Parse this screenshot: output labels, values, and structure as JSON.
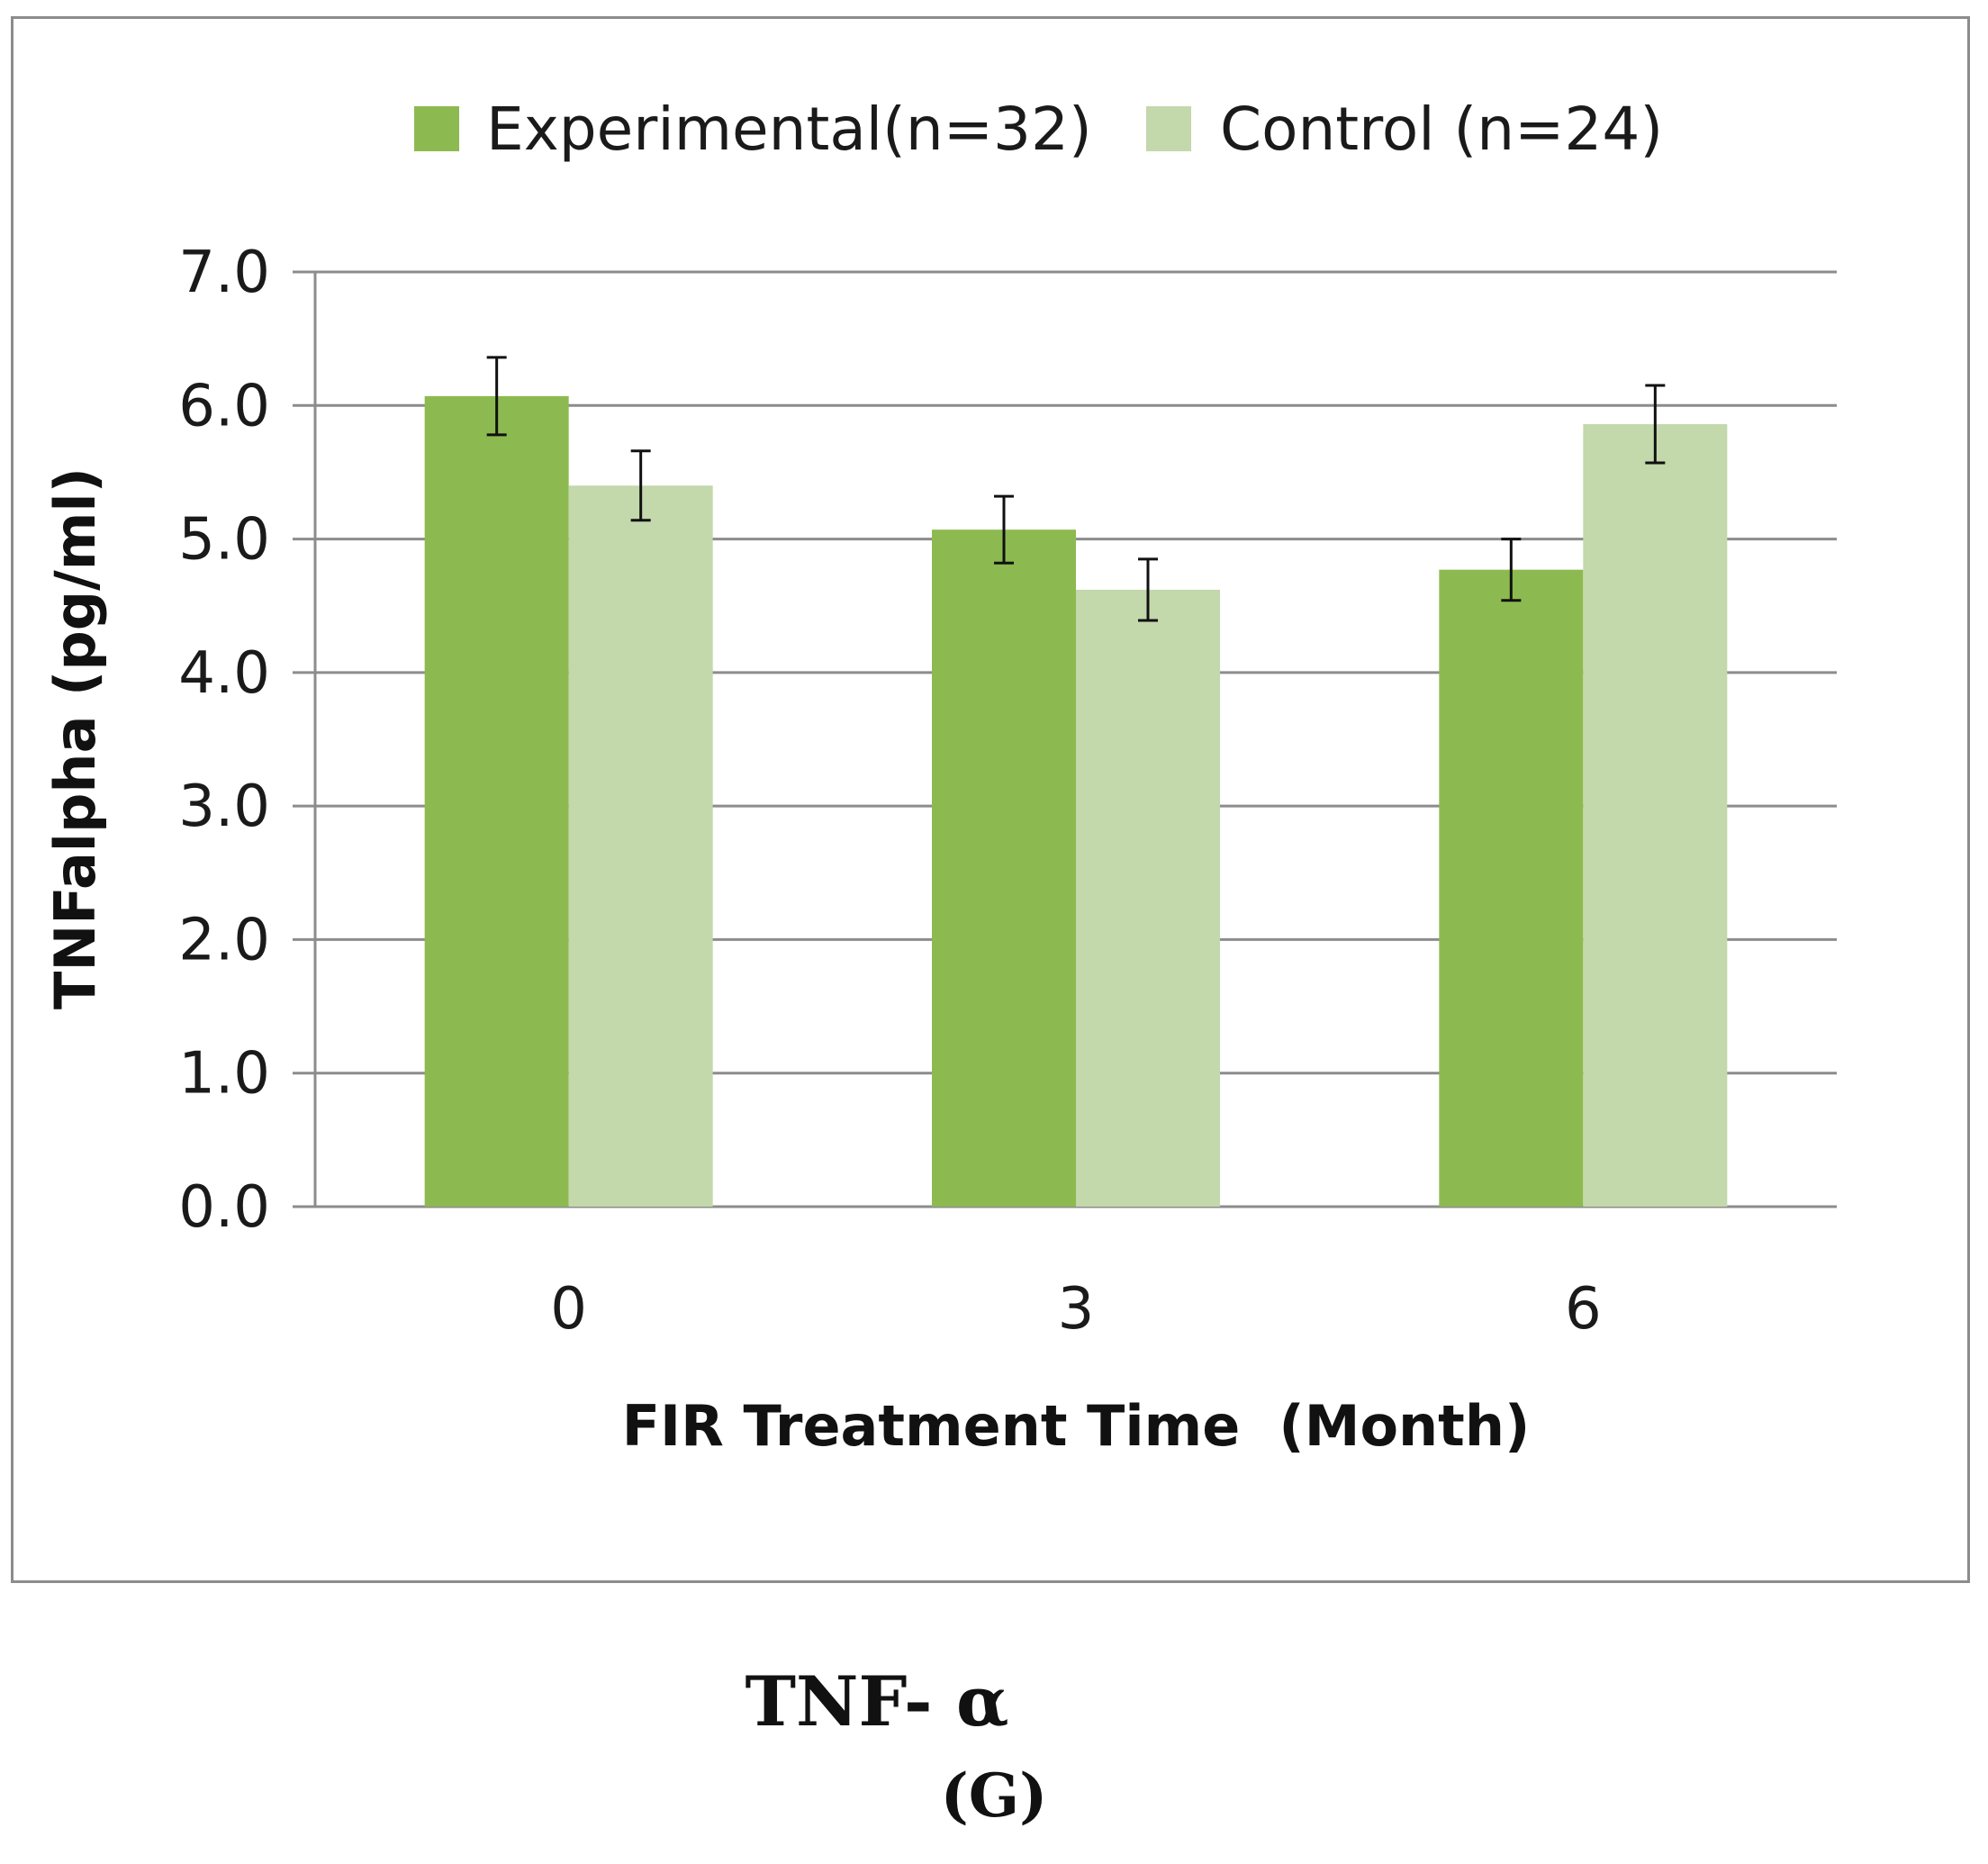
{
  "colors": {
    "experimental": "#8dba50",
    "control": "#c3d8ab",
    "grid": "#8c8c8c",
    "axis": "#8c8c8c",
    "error": "#111111"
  },
  "chart_data": {
    "type": "bar",
    "xlabel": "FIR Treatment Time  (Month)",
    "ylabel": "TNFalpha (pg/ml)",
    "categories": [
      "0",
      "3",
      "6"
    ],
    "ylim": [
      0,
      7
    ],
    "yticks": [
      "0.0",
      "1.0",
      "2.0",
      "3.0",
      "4.0",
      "5.0",
      "6.0",
      "7.0"
    ],
    "grid": true,
    "legend_position": "top",
    "series": [
      {
        "name": "Experimental(n=32)",
        "values": [
          6.07,
          5.07,
          4.77
        ],
        "errors": [
          0.29,
          0.25,
          0.23
        ]
      },
      {
        "name": "Control (n=24)",
        "values": [
          5.4,
          4.62,
          5.86
        ],
        "errors": [
          0.26,
          0.23,
          0.29
        ]
      }
    ]
  },
  "caption": {
    "name": "TNF- α",
    "letter": "(G)"
  }
}
